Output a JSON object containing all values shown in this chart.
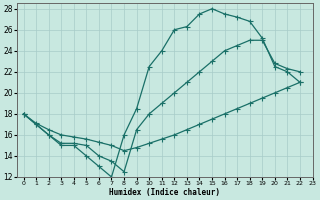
{
  "xlabel": "Humidex (Indice chaleur)",
  "bg_color": "#c8e8e0",
  "grid_color": "#a8ccc8",
  "line_color": "#1a7068",
  "xlim": [
    -0.5,
    23
  ],
  "ylim": [
    12,
    28.5
  ],
  "xticks": [
    0,
    1,
    2,
    3,
    4,
    5,
    6,
    7,
    8,
    9,
    10,
    11,
    12,
    13,
    14,
    15,
    16,
    17,
    18,
    19,
    20,
    21,
    22,
    23
  ],
  "yticks": [
    12,
    14,
    16,
    18,
    20,
    22,
    24,
    26,
    28
  ],
  "curve1_x": [
    0,
    1,
    2,
    3,
    4,
    5,
    6,
    7,
    8,
    9,
    10,
    11,
    12,
    13,
    14,
    15,
    16,
    17,
    18,
    19,
    20,
    21,
    22
  ],
  "curve1_y": [
    18,
    17,
    16,
    15,
    15,
    14,
    13,
    12,
    16,
    18.5,
    22.5,
    24,
    26,
    26.3,
    27.5,
    28,
    27.5,
    27.2,
    26.8,
    25.2,
    22.5,
    22,
    21
  ],
  "curve2_x": [
    0,
    1,
    2,
    3,
    4,
    5,
    6,
    7,
    8,
    9,
    10,
    11,
    12,
    13,
    14,
    15,
    16,
    17,
    18,
    19,
    20,
    21,
    22
  ],
  "curve2_y": [
    18,
    17,
    16,
    15.2,
    15.2,
    15,
    14,
    13.5,
    12.5,
    16.5,
    18,
    19,
    20,
    21,
    22,
    23,
    24,
    24.5,
    25,
    25,
    22.8,
    22.3,
    22
  ],
  "curve3_x": [
    0,
    1,
    2,
    3,
    4,
    5,
    6,
    7,
    8,
    9,
    10,
    11,
    12,
    13,
    14,
    15,
    16,
    17,
    18,
    19,
    20,
    21,
    22
  ],
  "curve3_y": [
    18,
    17.1,
    16.5,
    16.0,
    15.8,
    15.6,
    15.3,
    15.0,
    14.5,
    14.8,
    15.2,
    15.6,
    16.0,
    16.5,
    17.0,
    17.5,
    18.0,
    18.5,
    19.0,
    19.5,
    20.0,
    20.5,
    21.0
  ]
}
